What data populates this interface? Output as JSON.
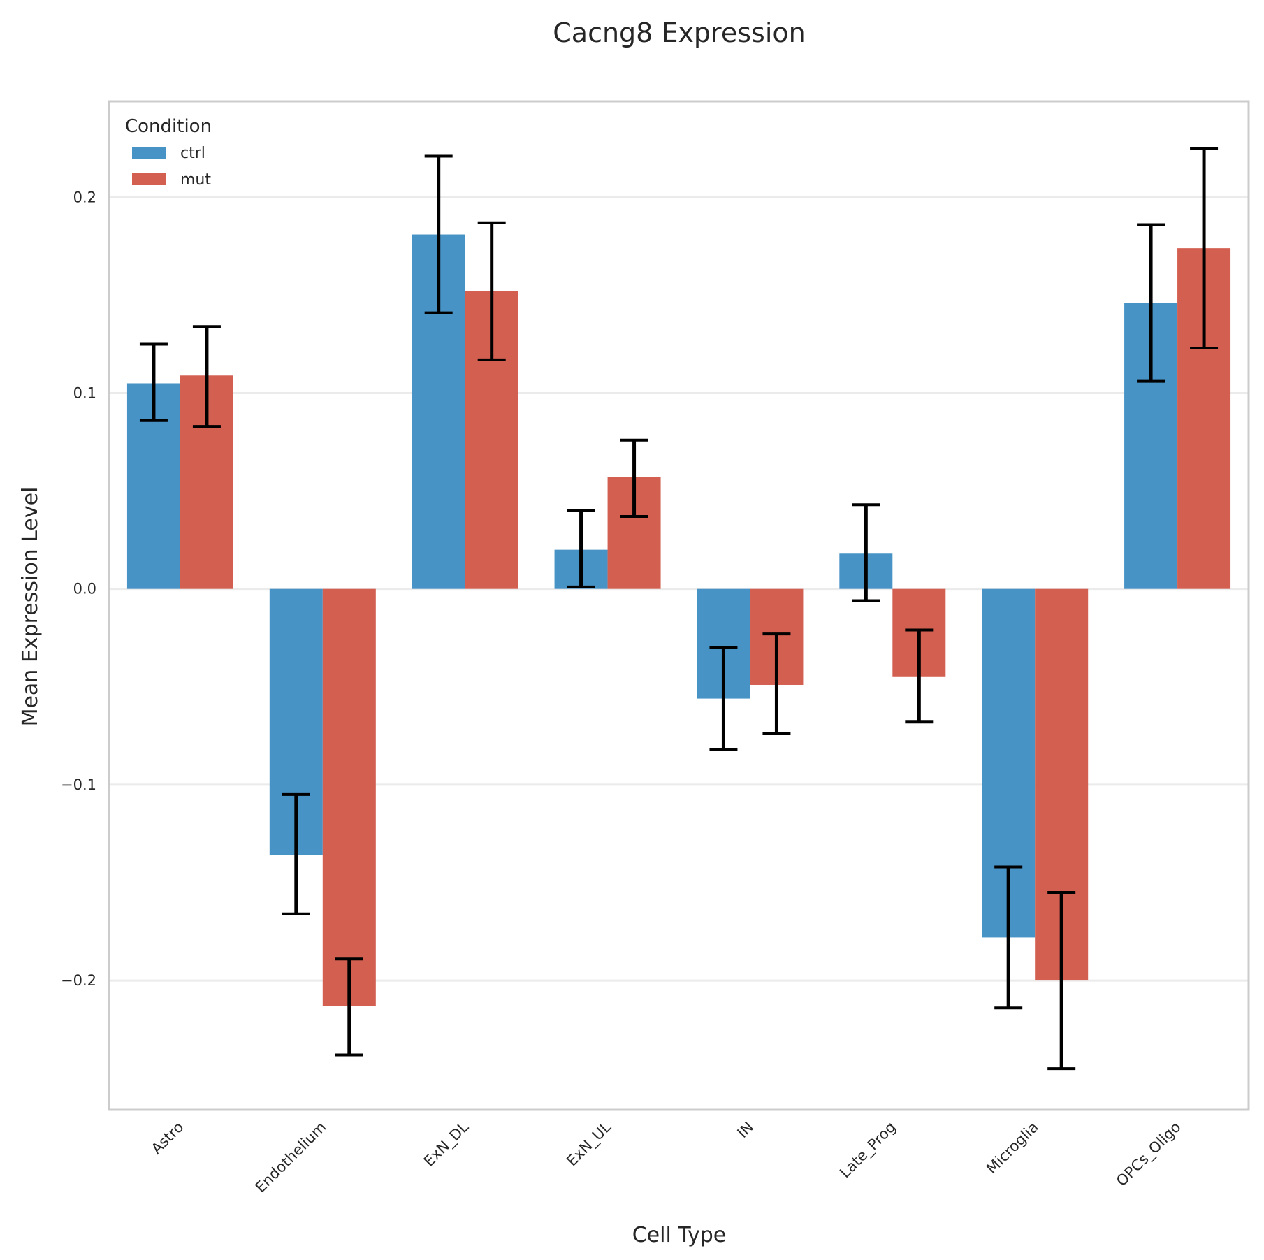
{
  "chart_data": {
    "type": "bar",
    "title": "Cacng8 Expression",
    "xlabel": "Cell Type",
    "ylabel": "Mean Expression Level",
    "ylim": [
      -0.266,
      0.249
    ],
    "yticks": [
      0.2,
      0.1,
      0.0,
      -0.1,
      -0.2
    ],
    "ytick_labels": [
      "0.2",
      "0.1",
      "0.0",
      "−0.1",
      "−0.2"
    ],
    "grid": "horizontal",
    "legend": {
      "title": "Condition",
      "placement": "top-left"
    },
    "categories": [
      "Astro",
      "Endothelium",
      "ExN_DL",
      "ExN_UL",
      "IN",
      "Late_Prog",
      "Microglia",
      "OPCs_Oligo"
    ],
    "series": [
      {
        "name": "ctrl",
        "color": "#4893c6",
        "values": [
          0.105,
          -0.136,
          0.181,
          0.02,
          -0.056,
          0.018,
          -0.178,
          0.146
        ],
        "err_low": [
          0.086,
          -0.166,
          0.141,
          0.001,
          -0.082,
          -0.006,
          -0.214,
          0.106
        ],
        "err_high": [
          0.125,
          -0.105,
          0.221,
          0.04,
          -0.03,
          0.043,
          -0.142,
          0.186
        ]
      },
      {
        "name": "mut",
        "color": "#d35f51",
        "values": [
          0.109,
          -0.213,
          0.152,
          0.057,
          -0.049,
          -0.045,
          -0.2,
          0.174
        ],
        "err_low": [
          0.083,
          -0.238,
          0.117,
          0.037,
          -0.074,
          -0.068,
          -0.245,
          0.123
        ],
        "err_high": [
          0.134,
          -0.189,
          0.187,
          0.076,
          -0.023,
          -0.021,
          -0.155,
          0.225
        ]
      }
    ]
  }
}
